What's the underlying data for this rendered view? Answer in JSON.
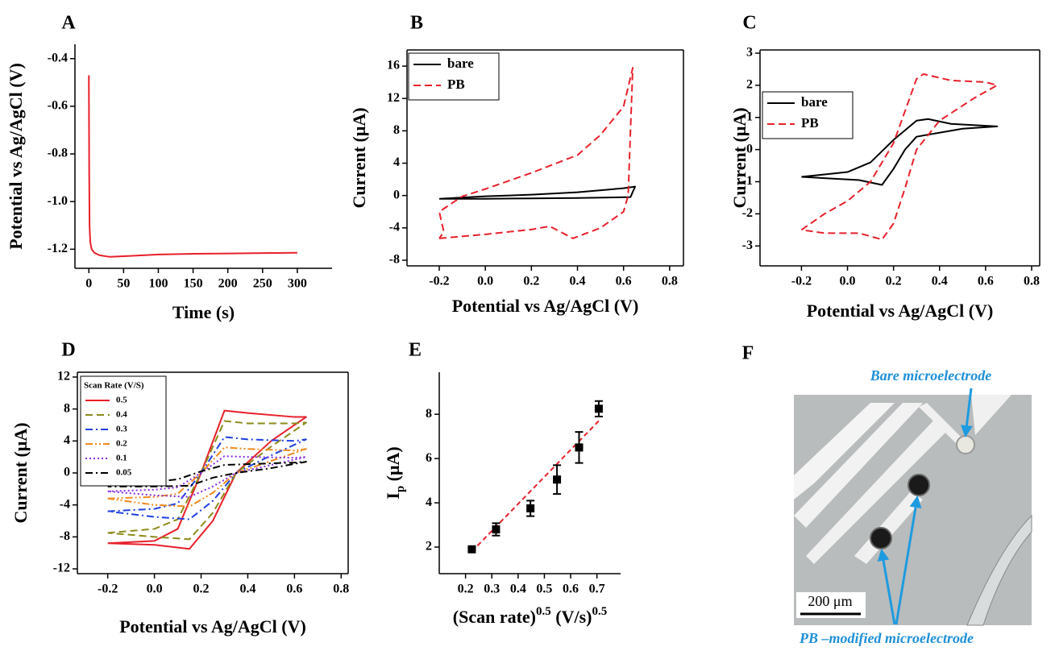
{
  "chart_data": [
    {
      "type": "line",
      "panel_label": "A",
      "xlabel": "Time (s)",
      "ylabel": "Potential vs Ag/AgCl (V)",
      "xlim": [
        -20,
        350
      ],
      "ylim": [
        -1.28,
        -0.34
      ],
      "xticks": [
        0,
        50,
        100,
        150,
        200,
        250,
        300
      ],
      "yticks": [
        -0.4,
        -0.6,
        -0.8,
        {
          "value": -1,
          "label": "-1.0"
        },
        -1.2
      ],
      "series": [
        {
          "color": "#e8202a",
          "dash": "solid",
          "x": [
            0,
            0.5,
            1,
            2,
            4,
            8,
            15,
            30,
            60,
            100,
            150,
            200,
            250,
            300
          ],
          "values": [
            -0.47,
            -0.88,
            -1.1,
            -1.17,
            -1.2,
            -1.215,
            -1.225,
            -1.232,
            -1.228,
            -1.222,
            -1.219,
            -1.218,
            -1.216,
            -1.215
          ]
        }
      ]
    },
    {
      "type": "line",
      "panel_label": "B",
      "xlabel": "Potential vs Ag/AgCl (V)",
      "ylabel": "Current (μA)",
      "xlim": [
        -0.34,
        0.86
      ],
      "ylim": [
        -8.7,
        18
      ],
      "xticks": [
        -0.2,
        {
          "value": 0,
          "label": "0.0"
        },
        0.2,
        0.4,
        0.6,
        0.8
      ],
      "yticks": [
        -8,
        -4,
        0,
        4,
        8,
        12,
        16
      ],
      "legend": "upper left",
      "series": [
        {
          "name": "bare",
          "color": "#000000",
          "dash": "solid",
          "x": [
            -0.2,
            0,
            0.2,
            0.4,
            0.6,
            0.65,
            0.63,
            0.4,
            0.2,
            0,
            -0.2
          ],
          "values": [
            -0.4,
            -0.1,
            0.1,
            0.4,
            0.9,
            1.1,
            -0.2,
            -0.3,
            -0.35,
            -0.4,
            -0.4
          ]
        },
        {
          "name": "PB",
          "color": "#e8202a",
          "dash": "dash",
          "x": [
            -0.2,
            0,
            0.2,
            0.28,
            0.38,
            0.5,
            0.6,
            0.62,
            0.63,
            0.64,
            0.6,
            0.5,
            0.4,
            0.2,
            0,
            -0.1,
            -0.2,
            -0.18,
            -0.2
          ],
          "values": [
            -5.3,
            -4.8,
            -4.2,
            -3.8,
            -5.3,
            -4,
            -2,
            0,
            8,
            15.8,
            11,
            7.5,
            5,
            2.8,
            0.8,
            -0.1,
            -2,
            -4.5,
            -5.3
          ]
        }
      ]
    },
    {
      "type": "line",
      "panel_label": "C",
      "xlabel": "Potential vs Ag/AgCl (V)",
      "ylabel": "Current (μA)",
      "xlim": [
        -0.38,
        0.835
      ],
      "ylim": [
        -3.62,
        3.1
      ],
      "xticks": [
        -0.2,
        {
          "value": 0,
          "label": "0.0"
        },
        0.2,
        0.4,
        0.6,
        0.8
      ],
      "yticks": [
        -3,
        -2,
        -1,
        0,
        1,
        2,
        3
      ],
      "legend": "upper left",
      "series": [
        {
          "name": "bare",
          "color": "#000000",
          "dash": "solid",
          "x": [
            -0.2,
            0,
            0.1,
            0.2,
            0.3,
            0.35,
            0.45,
            0.65,
            0.5,
            0.3,
            0.25,
            0.2,
            0.15,
            0.05,
            -0.2
          ],
          "values": [
            -0.85,
            -0.7,
            -0.4,
            0.3,
            0.9,
            0.95,
            0.8,
            0.72,
            0.65,
            0.4,
            0,
            -0.6,
            -1.1,
            -0.95,
            -0.85
          ]
        },
        {
          "name": "PB",
          "color": "#e8202a",
          "dash": "dash",
          "x": [
            -0.2,
            -0.1,
            0,
            0.1,
            0.2,
            0.3,
            0.33,
            0.45,
            0.6,
            0.65,
            0.55,
            0.4,
            0.3,
            0.25,
            0.2,
            0.15,
            0.05,
            -0.1,
            -0.2
          ],
          "values": [
            -2.5,
            -2,
            -1.6,
            -1,
            0.2,
            2.2,
            2.35,
            2.15,
            2.1,
            2,
            1.6,
            0.9,
            0,
            -1.2,
            -2.3,
            -2.8,
            -2.6,
            -2.6,
            -2.5
          ]
        }
      ]
    },
    {
      "type": "line",
      "panel_label": "D",
      "xlabel": "Potential vs Ag/AgCl (V)",
      "ylabel": "Current (μA)",
      "xlim": [
        -0.33,
        0.83
      ],
      "ylim": [
        -12.6,
        12.6
      ],
      "xticks": [
        -0.2,
        {
          "value": 0,
          "label": "0.0"
        },
        0.2,
        0.4,
        0.6,
        0.8
      ],
      "yticks": [
        -12,
        -8,
        -4,
        0,
        4,
        8,
        12
      ],
      "legend": "upper left",
      "legend_title": "Scan Rate (V/S)",
      "series": [
        {
          "name": "0.5",
          "color": "#e8202a",
          "dash": "solid",
          "x": [
            -0.2,
            0,
            0.1,
            0.2,
            0.3,
            0.4,
            0.6,
            0.65,
            0.5,
            0.35,
            0.25,
            0.15,
            0,
            -0.2
          ],
          "values": [
            -8.8,
            -8.5,
            -7,
            0,
            7.8,
            7.5,
            7,
            7,
            4,
            0,
            -6,
            -9.5,
            -9,
            -8.8
          ]
        },
        {
          "name": "0.4",
          "color": "#8b8b1a",
          "dash": "dash",
          "x": [
            -0.2,
            0,
            0.1,
            0.2,
            0.3,
            0.4,
            0.6,
            0.65,
            0.5,
            0.35,
            0.25,
            0.15,
            0,
            -0.2
          ],
          "values": [
            -7.5,
            -7,
            -5.8,
            0,
            6.5,
            6.2,
            6.2,
            6.3,
            3.3,
            0,
            -5,
            -8.3,
            -8,
            -7.5
          ]
        },
        {
          "name": "0.3",
          "color": "#1f3fe0",
          "dash": "dashdot",
          "x": [
            -0.2,
            0,
            0.1,
            0.2,
            0.3,
            0.4,
            0.6,
            0.65,
            0.5,
            0.35,
            0.25,
            0.15,
            0,
            -0.2
          ],
          "values": [
            -4.8,
            -4.5,
            -3.8,
            0,
            4.5,
            4.2,
            4,
            4.2,
            2.2,
            0,
            -3.5,
            -5.8,
            -5.5,
            -4.8
          ]
        },
        {
          "name": "0.2",
          "color": "#f08a1e",
          "dash": "dashdotdot",
          "x": [
            -0.2,
            0,
            0.1,
            0.2,
            0.3,
            0.4,
            0.6,
            0.65,
            0.5,
            0.35,
            0.25,
            0.15,
            0,
            -0.2
          ],
          "values": [
            -3.2,
            -3,
            -2.6,
            0,
            3.2,
            3,
            2.8,
            3,
            1.5,
            0,
            -2.5,
            -4.2,
            -4,
            -3.2
          ]
        },
        {
          "name": "0.1",
          "color": "#8a2be2",
          "dash": "dot",
          "x": [
            -0.2,
            0,
            0.1,
            0.2,
            0.3,
            0.4,
            0.6,
            0.65,
            0.5,
            0.35,
            0.25,
            0.15,
            0,
            -0.2
          ],
          "values": [
            -2.3,
            -2.1,
            -1.8,
            0,
            2.1,
            2,
            1.9,
            2,
            1,
            0,
            -1.7,
            -3,
            -2.8,
            -2.3
          ]
        },
        {
          "name": "0.05",
          "color": "#000000",
          "dash": "dashdot",
          "x": [
            -0.2,
            0,
            0.1,
            0.2,
            0.3,
            0.4,
            0.6,
            0.65,
            0.5,
            0.35,
            0.25,
            0.15,
            0,
            -0.2
          ],
          "values": [
            -1.3,
            -1.1,
            -0.8,
            0.2,
            1,
            1.1,
            1.3,
            1.4,
            0.6,
            0,
            -0.6,
            -1.6,
            -1.7,
            -1.7
          ]
        }
      ]
    },
    {
      "type": "scatter",
      "panel_label": "E",
      "xlabel": "(Scan rate)",
      "xlabel_sup": "0.5",
      "xlabel_unit": " (V/s)",
      "xlabel_unit_sup": "0.5",
      "ylabel": "I",
      "ylabel_sub": "p",
      "ylabel_unit": " (μA)",
      "xlim": [
        0.1,
        0.79
      ],
      "ylim": [
        0.8,
        9.9
      ],
      "xticks": [
        0.2,
        0.3,
        0.4,
        0.5,
        0.6,
        0.7
      ],
      "yticks": [
        2,
        4,
        6,
        8
      ],
      "color": "#000000",
      "x": [
        0.224,
        0.316,
        0.447,
        0.548,
        0.632,
        0.707
      ],
      "values": [
        1.9,
        2.8,
        3.75,
        5.05,
        6.5,
        8.25
      ],
      "errors": [
        0.08,
        0.28,
        0.35,
        0.65,
        0.7,
        0.35
      ],
      "fit": {
        "color": "#e8202a",
        "x": [
          0.224,
          0.707
        ],
        "values": [
          1.8,
          7.7
        ]
      }
    }
  ],
  "image_panel": {
    "panel_label": "F",
    "top_annotation": "Bare microelectrode",
    "bottom_annotation": "PB –modified microelectrode",
    "scale_bar": "200 μm"
  }
}
